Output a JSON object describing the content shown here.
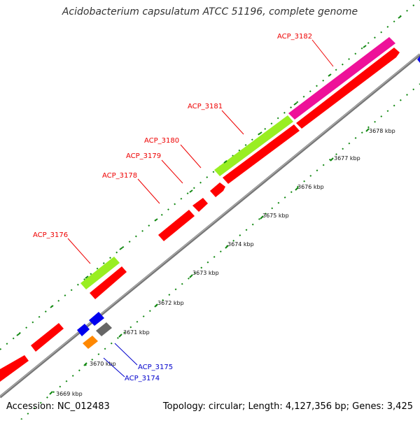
{
  "title": "Acidobacterium capsulatum ATCC 51196, complete genome",
  "accession": "Accession: NC_012483",
  "topology": "Topology: circular; Length: 4,127,356 bp; Genes: 3,425",
  "colors": {
    "backbone": "#888888",
    "gene_red": "#ff0000",
    "gene_magenta": "#ee1199",
    "gene_green": "#99ee22",
    "gene_blue": "#0000ee",
    "gene_orange": "#ff8800",
    "gene_gray": "#666666",
    "tick": "#118811",
    "label_red": "#ee0000",
    "label_blue": "#0000cc"
  },
  "scale_ticks": [
    {
      "label": "3669 kbp"
    },
    {
      "label": "3670 kbp"
    },
    {
      "label": "3671 kbp"
    },
    {
      "label": "3672 kbp"
    },
    {
      "label": "3673 kbp"
    },
    {
      "label": "3674 kbp"
    },
    {
      "label": "3675 kbp"
    },
    {
      "label": "3676 kbp"
    },
    {
      "label": "3677 kbp"
    },
    {
      "label": "3678 kbp"
    }
  ],
  "gene_labels": [
    {
      "id": "ACP_3182",
      "color": "red"
    },
    {
      "id": "ACP_3181",
      "color": "red"
    },
    {
      "id": "ACP_3180",
      "color": "red"
    },
    {
      "id": "ACP_3179",
      "color": "red"
    },
    {
      "id": "ACP_3178",
      "color": "red"
    },
    {
      "id": "ACP_3176",
      "color": "red"
    },
    {
      "id": "ACP_3175",
      "color": "blue"
    },
    {
      "id": "ACP_3174",
      "color": "blue"
    }
  ]
}
